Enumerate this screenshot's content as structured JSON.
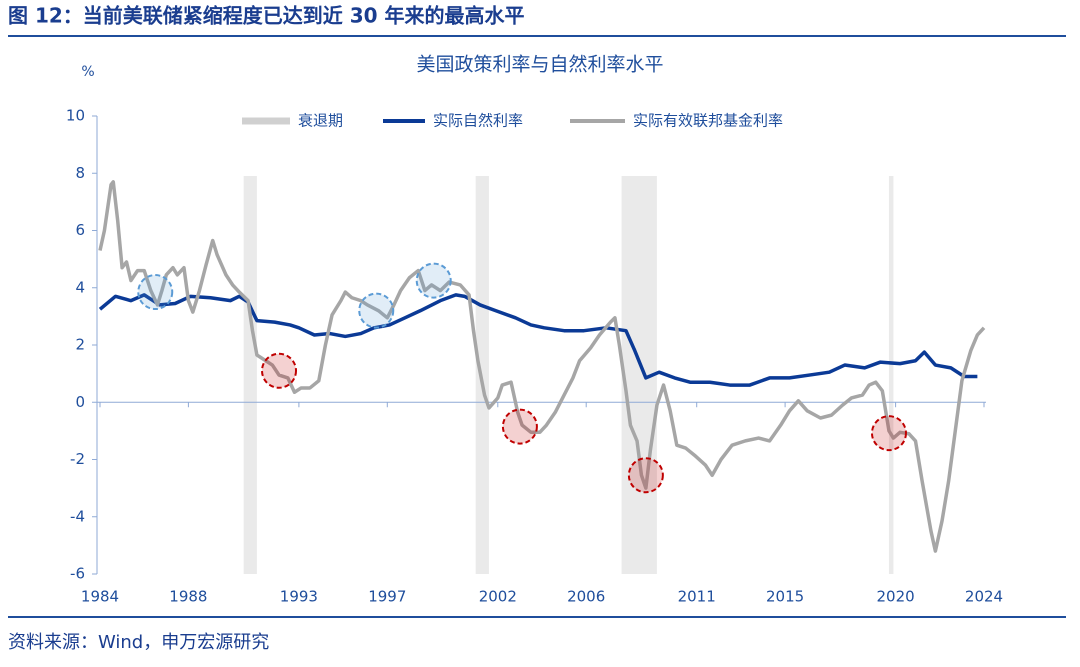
{
  "header": {
    "title": "图 12：当前美联储紧缩程度已达到近 30 年来的最高水平"
  },
  "source": "资料来源：Wind，申万宏源研究",
  "chart_data": {
    "type": "line",
    "title": "美国政策利率与自然利率水平",
    "y_label": "%",
    "xlim": [
      1984,
      2024
    ],
    "xticks": [
      1984,
      1988,
      1993,
      1997,
      2002,
      2006,
      2011,
      2015,
      2020,
      2024
    ],
    "ylim": [
      -6,
      10
    ],
    "yticks": [
      -6,
      -4,
      -2,
      0,
      2,
      4,
      6,
      8,
      10
    ],
    "legend": "top",
    "recessions": {
      "name": "衰退期",
      "color": "#d0d0d0",
      "spans": [
        [
          1990.5,
          1991.1
        ],
        [
          2001.0,
          2001.6
        ],
        [
          2007.6,
          2009.2
        ],
        [
          2019.7,
          2019.9
        ]
      ]
    },
    "series": [
      {
        "name": "实际自然利率",
        "color": "#0b3a96",
        "x": [
          1984.0,
          1984.7,
          1985.4,
          1986.0,
          1986.7,
          1987.4,
          1988.1,
          1989.0,
          1989.9,
          1990.3,
          1990.7,
          1991.1,
          1991.9,
          1992.6,
          1993.0,
          1993.7,
          1994.4,
          1995.1,
          1995.8,
          1996.4,
          1997.1,
          1997.8,
          1998.5,
          1999.4,
          2000.1,
          2000.5,
          2001.2,
          2001.9,
          2002.8,
          2003.5,
          2004.1,
          2005.0,
          2005.9,
          2006.9,
          2007.8,
          2008.2,
          2008.7,
          2009.3,
          2010.0,
          2010.7,
          2011.6,
          2012.5,
          2013.4,
          2014.3,
          2015.2,
          2016.1,
          2017.0,
          2017.7,
          2018.6,
          2019.3,
          2020.2,
          2020.9,
          2021.3,
          2021.8,
          2022.5,
          2023.1,
          2023.7
        ],
        "values": [
          3.25,
          3.7,
          3.55,
          3.75,
          3.4,
          3.45,
          3.7,
          3.65,
          3.55,
          3.7,
          3.5,
          2.85,
          2.8,
          2.7,
          2.6,
          2.35,
          2.4,
          2.3,
          2.4,
          2.6,
          2.7,
          2.95,
          3.2,
          3.55,
          3.75,
          3.7,
          3.4,
          3.2,
          2.95,
          2.7,
          2.6,
          2.5,
          2.5,
          2.6,
          2.5,
          1.8,
          0.85,
          1.05,
          0.85,
          0.7,
          0.7,
          0.6,
          0.6,
          0.85,
          0.85,
          0.95,
          1.05,
          1.3,
          1.2,
          1.4,
          1.35,
          1.45,
          1.75,
          1.3,
          1.2,
          0.9,
          0.9
        ]
      },
      {
        "name": "实际有效联邦基金利率",
        "color": "#a6a6a6",
        "x": [
          1984.0,
          1984.2,
          1984.5,
          1984.6,
          1984.8,
          1985.0,
          1985.2,
          1985.4,
          1985.7,
          1986.0,
          1986.3,
          1986.6,
          1986.8,
          1987.0,
          1987.3,
          1987.5,
          1987.8,
          1988.0,
          1988.2,
          1988.5,
          1988.8,
          1989.1,
          1989.3,
          1989.7,
          1990.0,
          1990.3,
          1990.7,
          1990.9,
          1991.1,
          1991.5,
          1991.8,
          1992.1,
          1992.5,
          1992.8,
          1993.1,
          1993.5,
          1993.9,
          1994.2,
          1994.5,
          1994.9,
          1995.1,
          1995.4,
          1995.8,
          1996.1,
          1996.6,
          1997.0,
          1997.3,
          1997.6,
          1998.0,
          1998.4,
          1998.7,
          1999.0,
          1999.4,
          1999.8,
          2000.3,
          2000.7,
          2000.9,
          2001.1,
          2001.4,
          2001.6,
          2002.0,
          2002.2,
          2002.6,
          2002.9,
          2003.1,
          2003.5,
          2003.9,
          2004.2,
          2004.6,
          2005.0,
          2005.4,
          2005.7,
          2006.2,
          2006.6,
          2007.1,
          2007.3,
          2007.5,
          2007.8,
          2008.0,
          2008.3,
          2008.5,
          2008.7,
          2008.9,
          2009.2,
          2009.5,
          2009.8,
          2010.1,
          2010.5,
          2010.9,
          2011.4,
          2011.7,
          2012.1,
          2012.6,
          2013.2,
          2013.8,
          2014.3,
          2014.8,
          2015.2,
          2015.6,
          2016.0,
          2016.6,
          2017.1,
          2017.6,
          2018.0,
          2018.5,
          2018.8,
          2019.1,
          2019.4,
          2019.7,
          2019.9,
          2020.2,
          2020.6,
          2020.9,
          2021.2,
          2021.6,
          2021.8,
          2022.1,
          2022.4,
          2022.7,
          2023.0,
          2023.4,
          2023.7,
          2024.0
        ],
        "values": [
          5.3,
          6.0,
          7.6,
          7.7,
          6.35,
          4.7,
          4.9,
          4.25,
          4.6,
          4.6,
          3.9,
          3.4,
          3.9,
          4.45,
          4.7,
          4.45,
          4.7,
          3.55,
          3.15,
          3.9,
          4.8,
          5.65,
          5.15,
          4.45,
          4.1,
          3.85,
          3.55,
          2.5,
          1.65,
          1.45,
          1.3,
          0.95,
          0.85,
          0.35,
          0.5,
          0.5,
          0.75,
          2.0,
          3.05,
          3.55,
          3.85,
          3.65,
          3.55,
          3.4,
          3.2,
          2.95,
          3.4,
          3.9,
          4.35,
          4.6,
          3.9,
          4.1,
          3.9,
          4.2,
          4.1,
          3.75,
          2.5,
          1.45,
          0.25,
          -0.2,
          0.15,
          0.6,
          0.7,
          -0.35,
          -0.8,
          -1.05,
          -1.05,
          -0.8,
          -0.35,
          0.25,
          0.85,
          1.45,
          1.9,
          2.35,
          2.8,
          2.95,
          2.0,
          0.4,
          -0.8,
          -1.35,
          -2.55,
          -3.0,
          -1.7,
          -0.1,
          0.6,
          -0.3,
          -1.5,
          -1.6,
          -1.85,
          -2.2,
          -2.55,
          -2.0,
          -1.5,
          -1.35,
          -1.25,
          -1.35,
          -0.8,
          -0.3,
          0.05,
          -0.3,
          -0.55,
          -0.45,
          -0.1,
          0.15,
          0.25,
          0.6,
          0.7,
          0.4,
          -1.0,
          -1.25,
          -1.05,
          -1.1,
          -1.35,
          -2.75,
          -4.5,
          -5.2,
          -4.15,
          -2.75,
          -1.0,
          0.75,
          1.8,
          2.35,
          2.6
        ]
      }
    ],
    "annotations": [
      {
        "x": 1986.5,
        "y": 3.85,
        "color": "#5b9bd5"
      },
      {
        "x": 1996.5,
        "y": 3.2,
        "color": "#5b9bd5"
      },
      {
        "x": 1999.1,
        "y": 4.25,
        "color": "#5b9bd5"
      },
      {
        "x": 1992.1,
        "y": 1.1,
        "color": "#c00000"
      },
      {
        "x": 2003.0,
        "y": -0.85,
        "color": "#c00000"
      },
      {
        "x": 2008.7,
        "y": -2.55,
        "color": "#c00000"
      },
      {
        "x": 2019.7,
        "y": -1.08,
        "color": "#c00000"
      }
    ]
  }
}
